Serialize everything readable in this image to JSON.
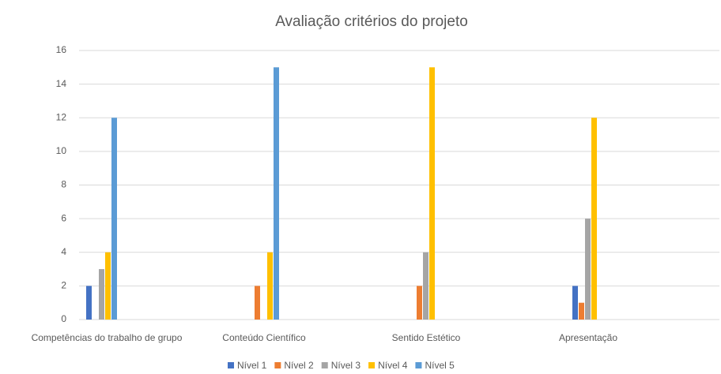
{
  "chart_data": {
    "type": "bar",
    "title": "Avaliação critérios do projeto",
    "categories": [
      "Competências do trabalho de grupo",
      "Conteúdo Científico",
      "Sentido Estético",
      "Apresentação"
    ],
    "series": [
      {
        "name": "Nível 1",
        "color": "#4472c4",
        "values": [
          2,
          0,
          0,
          2
        ]
      },
      {
        "name": "Nível 2",
        "color": "#ed7d31",
        "values": [
          0,
          2,
          2,
          1
        ]
      },
      {
        "name": "Nível 3",
        "color": "#a5a5a5",
        "values": [
          3,
          0,
          4,
          6
        ]
      },
      {
        "name": "Nível 4",
        "color": "#ffc000",
        "values": [
          4,
          4,
          15,
          12
        ]
      },
      {
        "name": "Nível 5",
        "color": "#5b9bd5",
        "values": [
          12,
          15,
          0,
          0
        ]
      }
    ],
    "ylim": [
      0,
      16
    ],
    "yticks": [
      0,
      2,
      4,
      6,
      8,
      10,
      12,
      14,
      16
    ],
    "grid": true,
    "legend": "bottom"
  }
}
